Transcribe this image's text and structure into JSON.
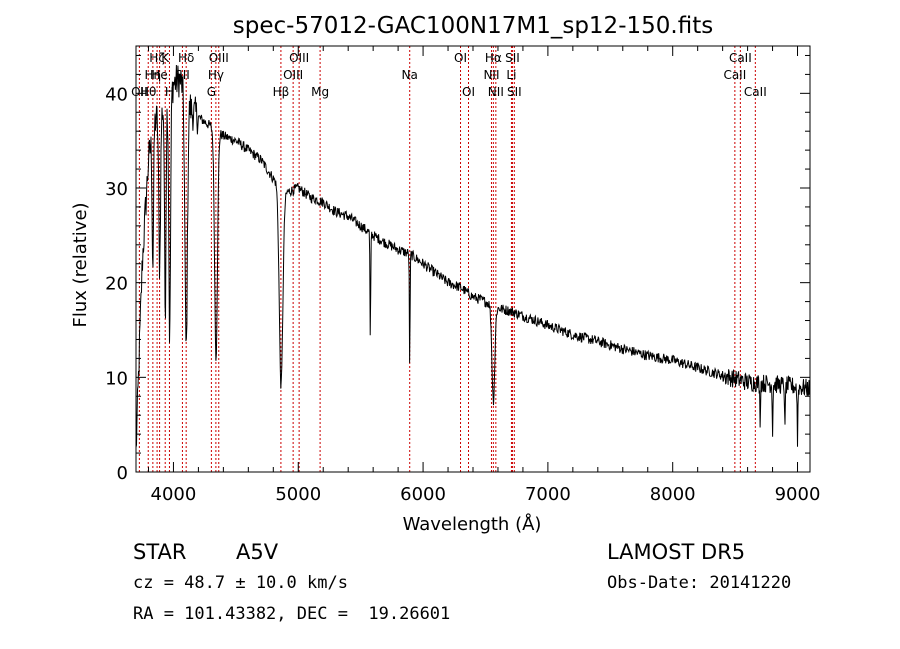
{
  "chart_data": {
    "type": "line",
    "title": "spec-57012-GAC100N17M1_sp12-150.fits",
    "xlabel": "Wavelength (Å)",
    "ylabel": "Flux (relative)",
    "xlim": [
      3700,
      9100
    ],
    "ylim": [
      0,
      45
    ],
    "x_ticks": [
      4000,
      5000,
      6000,
      7000,
      8000,
      9000
    ],
    "y_ticks": [
      0,
      10,
      20,
      30,
      40
    ],
    "grid": false,
    "line_color": "#000000",
    "marker_color": "#cc0000",
    "continuum": {
      "x": [
        3700,
        3750,
        3800,
        3850,
        3900,
        3950,
        4000,
        4050,
        4100,
        4150,
        4200,
        4300,
        4400,
        4500,
        4600,
        4700,
        4800,
        4900,
        5000,
        5100,
        5200,
        5300,
        5400,
        5500,
        5600,
        5700,
        5800,
        5900,
        6000,
        6100,
        6200,
        6300,
        6400,
        6500,
        6600,
        6700,
        6800,
        6900,
        7000,
        7200,
        7400,
        7600,
        7800,
        8000,
        8200,
        8400,
        8600,
        8800,
        9000,
        9100
      ],
      "y": [
        2,
        22,
        33,
        37,
        38,
        39,
        41,
        41.5,
        40,
        38,
        37.5,
        36.5,
        35.5,
        35,
        34,
        33,
        31,
        29.5,
        30,
        29,
        28.5,
        27.5,
        27,
        26,
        25,
        24.2,
        23.5,
        23,
        22,
        21,
        20,
        19.5,
        18.5,
        18,
        17.3,
        17,
        16.5,
        16,
        15.5,
        14.5,
        13.8,
        13,
        12.3,
        11.8,
        11,
        10.2,
        9.5,
        9.3,
        9,
        8.8
      ]
    },
    "absorption_lines": [
      {
        "x": 3835,
        "depth": 14,
        "width": 8
      },
      {
        "x": 3889,
        "depth": 16,
        "width": 10
      },
      {
        "x": 3934,
        "depth": 22,
        "width": 8
      },
      {
        "x": 3970,
        "depth": 26,
        "width": 10
      },
      {
        "x": 4102,
        "depth": 27,
        "width": 14
      },
      {
        "x": 4341,
        "depth": 24,
        "width": 16
      },
      {
        "x": 4862,
        "depth": 21,
        "width": 20
      },
      {
        "x": 5577,
        "depth": 12,
        "width": 4
      },
      {
        "x": 5893,
        "depth": 12,
        "width": 4
      },
      {
        "x": 6563,
        "depth": 10,
        "width": 16
      },
      {
        "x": 8700,
        "depth": 4,
        "width": 4
      },
      {
        "x": 8800,
        "depth": 5,
        "width": 4
      },
      {
        "x": 8900,
        "depth": 5,
        "width": 4
      },
      {
        "x": 9000,
        "depth": 6,
        "width": 4
      }
    ],
    "noise_amplitude": 0.55,
    "marker_lines": [
      {
        "x": 3727,
        "label": "OII",
        "row": 2
      },
      {
        "x": 3798,
        "label": "Hθ",
        "row": 2
      },
      {
        "x": 3835,
        "label": "Hη",
        "row": 1
      },
      {
        "x": 3869,
        "label": "Hζ",
        "row": 0
      },
      {
        "x": 3889,
        "label": "He",
        "row": 1
      },
      {
        "x": 3934,
        "label": "K",
        "row": 0
      },
      {
        "x": 3968,
        "label": "H",
        "row": 2
      },
      {
        "x": 4072,
        "label": "SII",
        "row": 1
      },
      {
        "x": 4102,
        "label": "Hδ",
        "row": 0
      },
      {
        "x": 4304,
        "label": "G",
        "row": 2
      },
      {
        "x": 4340,
        "label": "Hγ",
        "row": 1
      },
      {
        "x": 4363,
        "label": "OIII",
        "row": 0
      },
      {
        "x": 4861,
        "label": "Hβ",
        "row": 2
      },
      {
        "x": 4959,
        "label": "OIII",
        "row": 1
      },
      {
        "x": 5007,
        "label": "OIII",
        "row": 0
      },
      {
        "x": 5175,
        "label": "Mg",
        "row": 2
      },
      {
        "x": 5893,
        "label": "Na",
        "row": 1
      },
      {
        "x": 6300,
        "label": "OI",
        "row": 0
      },
      {
        "x": 6364,
        "label": "OI",
        "row": 2
      },
      {
        "x": 6548,
        "label": "NII",
        "row": 1
      },
      {
        "x": 6563,
        "label": "Hα",
        "row": 0
      },
      {
        "x": 6583,
        "label": "NII",
        "row": 2
      },
      {
        "x": 6708,
        "label": "Li",
        "row": 1
      },
      {
        "x": 6716,
        "label": "SII",
        "row": 0
      },
      {
        "x": 6731,
        "label": "SII",
        "row": 2
      },
      {
        "x": 8498,
        "label": "CaII",
        "row": 1
      },
      {
        "x": 8542,
        "label": "CaII",
        "row": 0
      },
      {
        "x": 8662,
        "label": "CaII",
        "row": 2
      }
    ]
  },
  "info": {
    "object_class": "STAR",
    "subclass": "A5V",
    "survey": "LAMOST DR5",
    "cz": "cz = 48.7 ± 10.0 km/s",
    "obs_date": "Obs-Date: 20141220",
    "coords": "RA = 101.43382, DEC =  19.26601"
  }
}
